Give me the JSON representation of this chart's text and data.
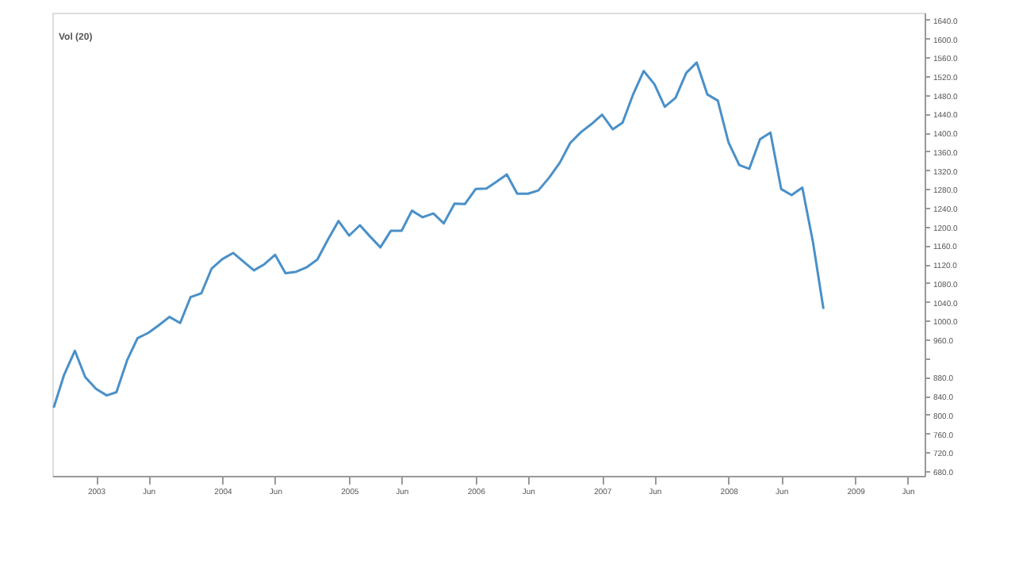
{
  "chart_data": {
    "type": "line",
    "subtitle": "Vol (20)",
    "x": [
      "2002-09",
      "2002-10",
      "2002-11",
      "2002-12",
      "2003-01",
      "2003-02",
      "2003-03",
      "2003-04",
      "2003-05",
      "2003-06",
      "2003-07",
      "2003-08",
      "2003-09",
      "2003-10",
      "2003-11",
      "2003-12",
      "2004-01",
      "2004-02",
      "2004-03",
      "2004-04",
      "2004-05",
      "2004-06",
      "2004-07",
      "2004-08",
      "2004-09",
      "2004-10",
      "2004-11",
      "2004-12",
      "2005-01",
      "2005-02",
      "2005-03",
      "2005-04",
      "2005-05",
      "2005-06",
      "2005-07",
      "2005-08",
      "2005-09",
      "2005-10",
      "2005-11",
      "2005-12",
      "2006-01",
      "2006-02",
      "2006-03",
      "2006-04",
      "2006-05",
      "2006-06",
      "2006-07",
      "2006-08",
      "2006-09",
      "2006-10",
      "2006-11",
      "2006-12",
      "2007-01",
      "2007-02",
      "2007-03",
      "2007-04",
      "2007-05",
      "2007-06",
      "2007-07",
      "2007-08",
      "2007-09",
      "2007-10",
      "2007-11",
      "2007-12",
      "2008-01",
      "2008-02",
      "2008-03",
      "2008-04",
      "2008-05",
      "2008-06",
      "2008-07",
      "2008-08",
      "2008-09",
      "2008-10"
    ],
    "series": [
      {
        "color": "#4a90c8",
        "values": [
          815,
          885,
          936,
          880,
          855,
          841,
          848,
          916,
          963,
          974,
          990,
          1008,
          995,
          1050,
          1058,
          1111,
          1131,
          1144,
          1126,
          1107,
          1120,
          1140,
          1101,
          1104,
          1114,
          1130,
          1173,
          1212,
          1181,
          1203,
          1180,
          1156,
          1191,
          1191,
          1234,
          1220,
          1228,
          1207,
          1249,
          1248,
          1280,
          1281,
          1295,
          1311,
          1270,
          1270,
          1277,
          1304,
          1336,
          1378,
          1401,
          1418,
          1438,
          1407,
          1421,
          1482,
          1531,
          1503,
          1455,
          1474,
          1527,
          1549,
          1481,
          1468,
          1379,
          1331,
          1323,
          1386,
          1400,
          1280,
          1267,
          1283,
          1166,
          1025
        ]
      }
    ],
    "xlim": [
      "2002-08-28",
      "2009-07-20"
    ],
    "xticks": [
      {
        "value": "2003-01",
        "label": "2003"
      },
      {
        "value": "2003-06",
        "label": "Jun"
      },
      {
        "value": "2004-01",
        "label": "2004"
      },
      {
        "value": "2004-06",
        "label": "Jun"
      },
      {
        "value": "2005-01",
        "label": "2005"
      },
      {
        "value": "2005-06",
        "label": "Jun"
      },
      {
        "value": "2006-01",
        "label": "2006"
      },
      {
        "value": "2006-06",
        "label": "Jun"
      },
      {
        "value": "2007-01",
        "label": "2007"
      },
      {
        "value": "2007-06",
        "label": "Jun"
      },
      {
        "value": "2008-01",
        "label": "2008"
      },
      {
        "value": "2008-06",
        "label": "Jun"
      },
      {
        "value": "2009-01",
        "label": "2009"
      },
      {
        "value": "2009-06",
        "label": "Jun"
      }
    ],
    "ylim": [
      670,
      1655
    ],
    "yticks": [
      {
        "value": 680,
        "label": "680.0"
      },
      {
        "value": 720,
        "label": "720.0"
      },
      {
        "value": 760,
        "label": "760.0"
      },
      {
        "value": 800,
        "label": "800.0"
      },
      {
        "value": 840,
        "label": "840.0"
      },
      {
        "value": 880,
        "label": "880.0"
      },
      {
        "value": 920,
        "label": null
      },
      {
        "value": 960,
        "label": "960.0"
      },
      {
        "value": 1000,
        "label": "1000.0"
      },
      {
        "value": 1040,
        "label": "1040.0"
      },
      {
        "value": 1080,
        "label": "1080.0"
      },
      {
        "value": 1120,
        "label": "1120.0"
      },
      {
        "value": 1160,
        "label": "1160.0"
      },
      {
        "value": 1200,
        "label": "1200.0"
      },
      {
        "value": 1240,
        "label": "1240.0"
      },
      {
        "value": 1280,
        "label": "1280.0"
      },
      {
        "value": 1320,
        "label": "1320.0"
      },
      {
        "value": 1360,
        "label": "1360.0"
      },
      {
        "value": 1400,
        "label": "1400.0"
      },
      {
        "value": 1440,
        "label": "1440.0"
      },
      {
        "value": 1480,
        "label": "1480.0"
      },
      {
        "value": 1520,
        "label": "1520.0"
      },
      {
        "value": 1560,
        "label": "1560.0"
      },
      {
        "value": 1600,
        "label": "1600.0"
      },
      {
        "value": 1640,
        "label": "1640.0"
      }
    ],
    "grid": false,
    "marker": "none",
    "line_style": "solid"
  }
}
